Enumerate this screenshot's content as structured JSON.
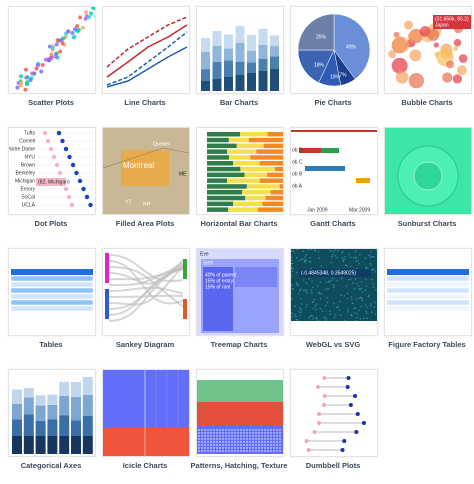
{
  "gallery": {
    "items": [
      {
        "caption": "Scatter Plots"
      },
      {
        "caption": "Line Charts"
      },
      {
        "caption": "Bar Charts"
      },
      {
        "caption": "Pie Charts",
        "texts": [
          "25%",
          "40%",
          "18%",
          "10%",
          "7%"
        ]
      },
      {
        "caption": "Bubble Charts",
        "texts": [
          "(31.656k, 83.2)",
          "Japan"
        ]
      },
      {
        "caption": "Dot Plots",
        "texts": [
          "Tufts",
          "Cornell",
          "Notre Dame",
          "NYU",
          "Brown",
          "Berkeley",
          "Michigan",
          "Emory",
          "SoCal",
          "UCLA",
          "(82, Michigan)"
        ]
      },
      {
        "caption": "Filled Area Plots",
        "texts": [
          "Quebec",
          "Montreal",
          "ME",
          "VT",
          "NH"
        ]
      },
      {
        "caption": "Horizontal Bar Charts"
      },
      {
        "caption": "Gantt Charts",
        "texts": [
          "ob D",
          "ob C",
          "ob B",
          "ob A",
          "Jan 2009",
          "Mar 2009"
        ]
      },
      {
        "caption": "Sunburst Charts"
      },
      {
        "caption": "Tables"
      },
      {
        "caption": "Sankey Diagram"
      },
      {
        "caption": "Treemap Charts",
        "texts": [
          "Eve",
          "Seth",
          "40% of parent",
          "15% of entry",
          "15% of root"
        ]
      },
      {
        "caption": "WebGL vs SVG",
        "texts": [
          "(-0.4845348, 0.3549025)"
        ]
      },
      {
        "caption": "Figure Factory Tables"
      },
      {
        "caption": "Categorical Axes"
      },
      {
        "caption": "Icicle Charts"
      },
      {
        "caption": "Patterns, Hatching, Texture"
      },
      {
        "caption": "Dumbbell Plots"
      }
    ]
  }
}
